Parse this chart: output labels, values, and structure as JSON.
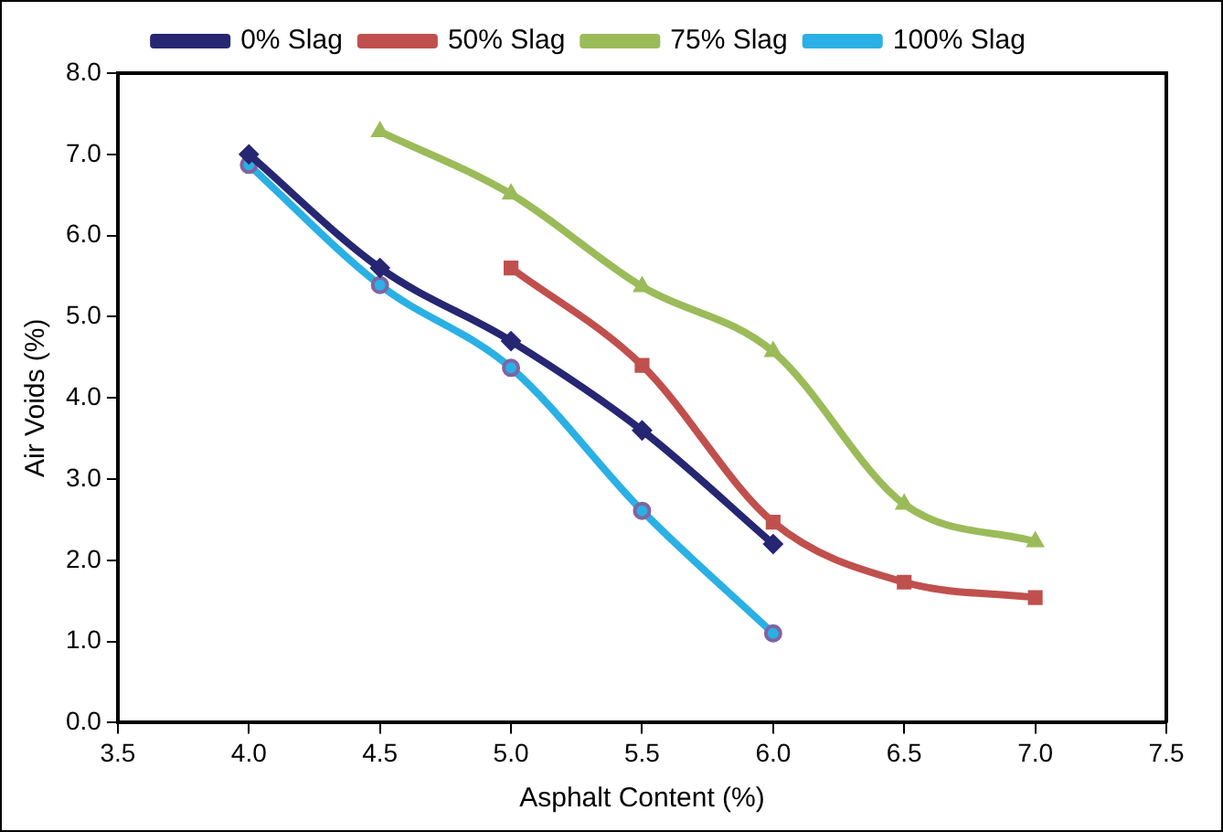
{
  "chart_data": {
    "type": "line",
    "xlabel": "Asphalt Content (%)",
    "ylabel": "Air Voids (%)",
    "legend": "top",
    "grid": false,
    "line_style": "solid",
    "xlim": [
      3.5,
      7.5
    ],
    "xticks": [
      {
        "value": 3.5,
        "label": "3.5"
      },
      {
        "value": 4,
        "label": "4.0"
      },
      {
        "value": 4.5,
        "label": "4.5"
      },
      {
        "value": 5,
        "label": "5.0"
      },
      {
        "value": 5.5,
        "label": "5.5"
      },
      {
        "value": 6,
        "label": "6.0"
      },
      {
        "value": 6.5,
        "label": "6.5"
      },
      {
        "value": 7,
        "label": "7.0"
      },
      {
        "value": 7.5,
        "label": "7.5"
      }
    ],
    "ylim": [
      0,
      8
    ],
    "yticks": [
      {
        "value": 0,
        "label": "0.0"
      },
      {
        "value": 1,
        "label": "1.0"
      },
      {
        "value": 2,
        "label": "2.0"
      },
      {
        "value": 3,
        "label": "3.0"
      },
      {
        "value": 4,
        "label": "4.0"
      },
      {
        "value": 5,
        "label": "5.0"
      },
      {
        "value": 6,
        "label": "6.0"
      },
      {
        "value": 7,
        "label": "7.0"
      },
      {
        "value": 8,
        "label": "8.0"
      }
    ],
    "series": [
      {
        "name": "0% Slag",
        "color": "#262673",
        "marker": "diamond",
        "x": [
          4,
          4.5,
          5,
          5.5,
          6
        ],
        "values": [
          7.0,
          5.6,
          4.7,
          3.6,
          2.2
        ]
      },
      {
        "name": "50% Slag",
        "color": "#c0504d",
        "marker": "square",
        "x": [
          5,
          5.5,
          6,
          6.5,
          7
        ],
        "values": [
          5.6,
          4.4,
          2.47,
          1.73,
          1.54
        ]
      },
      {
        "name": "75% Slag",
        "color": "#9bbb59",
        "marker": "triangle",
        "x": [
          4.5,
          5,
          5.5,
          6,
          6.5,
          7
        ],
        "values": [
          7.28,
          6.51,
          5.37,
          4.57,
          2.69,
          2.23
        ]
      },
      {
        "name": "100% Slag",
        "color": "#2ab0e4",
        "marker": "circle",
        "x": [
          4,
          4.5,
          5,
          5.5,
          6
        ],
        "values": [
          6.87,
          5.39,
          4.37,
          2.61,
          1.1
        ]
      }
    ]
  }
}
